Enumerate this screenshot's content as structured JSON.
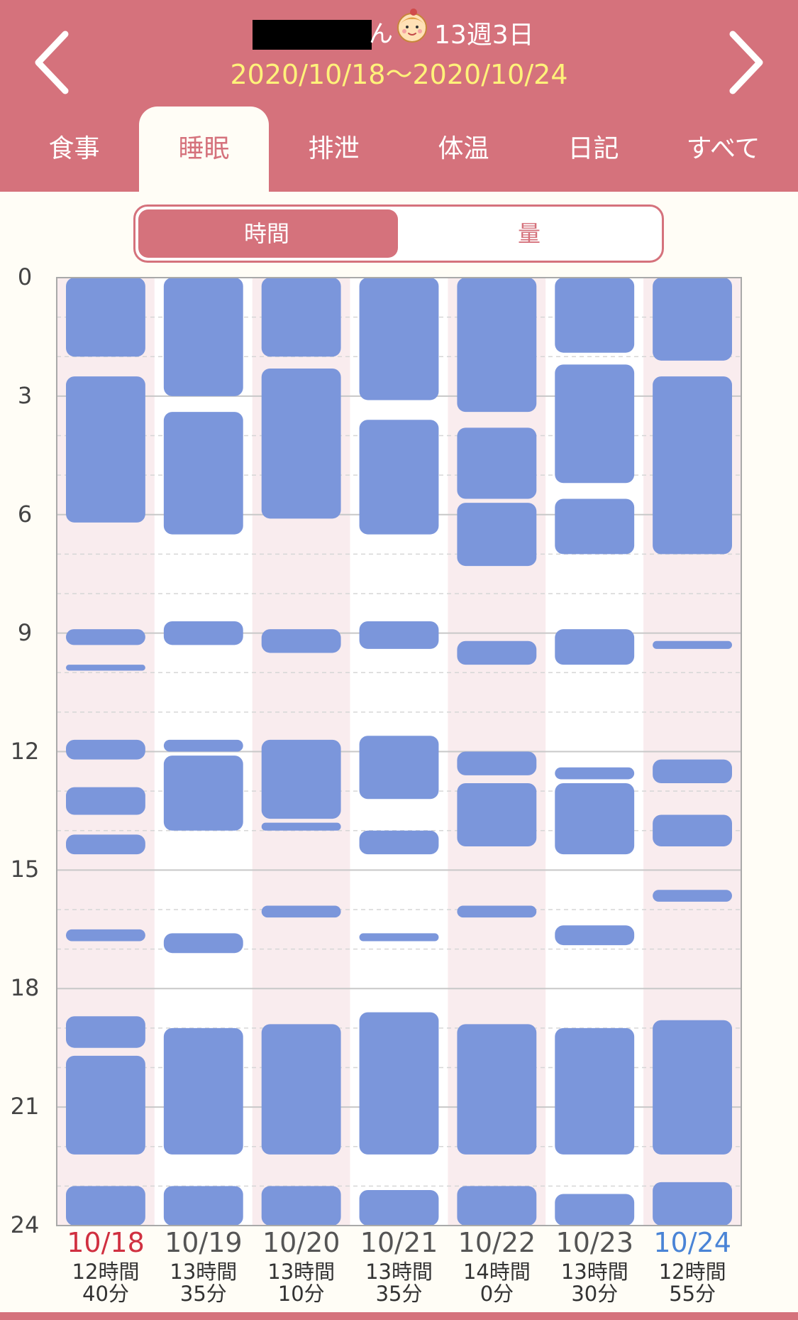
{
  "header": {
    "name_fragment": "ん",
    "week_label": "13週3日",
    "date_range": "2020/10/18〜2020/10/24",
    "icons": {
      "prev": "chevron-left-icon",
      "next": "chevron-right-icon",
      "baby": "baby-face-icon"
    }
  },
  "tabs": [
    {
      "label": "食事",
      "active": false
    },
    {
      "label": "睡眠",
      "active": true
    },
    {
      "label": "排泄",
      "active": false
    },
    {
      "label": "体温",
      "active": false
    },
    {
      "label": "日記",
      "active": false
    },
    {
      "label": "すべて",
      "active": false
    }
  ],
  "segment": {
    "option1": "時間",
    "option2": "量",
    "selected": "時間"
  },
  "colors": {
    "accent": "#d5727c",
    "sleep_bar": "#7b96db",
    "date_range": "#fff27a",
    "sunday": "#d03040",
    "saturday": "#4a84d6"
  },
  "chart_data": {
    "type": "bar",
    "y_axis": {
      "ticks": [
        "0",
        "3",
        "6",
        "9",
        "12",
        "15",
        "18",
        "21",
        "24"
      ],
      "range": [
        0,
        24
      ],
      "inverted": true
    },
    "grid": true,
    "days": [
      {
        "date": "10/18",
        "duration_hours": "12時間",
        "duration_min": "40分",
        "segments": [
          [
            0,
            2
          ],
          [
            2.5,
            6.2
          ],
          [
            8.9,
            9.3
          ],
          [
            9.8,
            9.95
          ],
          [
            11.7,
            12.2
          ],
          [
            12.9,
            13.6
          ],
          [
            14.1,
            14.6
          ],
          [
            16.5,
            16.8
          ],
          [
            18.7,
            19.5
          ],
          [
            19.7,
            22.2
          ],
          [
            23,
            24
          ]
        ]
      },
      {
        "date": "10/19",
        "duration_hours": "13時間",
        "duration_min": "35分",
        "segments": [
          [
            0,
            3
          ],
          [
            3.4,
            6.5
          ],
          [
            8.7,
            9.3
          ],
          [
            11.7,
            12
          ],
          [
            12.1,
            14
          ],
          [
            16.6,
            17.1
          ],
          [
            19,
            22.2
          ],
          [
            23,
            24
          ]
        ]
      },
      {
        "date": "10/20",
        "duration_hours": "13時間",
        "duration_min": "10分",
        "segments": [
          [
            0,
            2
          ],
          [
            2.3,
            6.1
          ],
          [
            8.9,
            9.5
          ],
          [
            11.7,
            13.7
          ],
          [
            13.8,
            14
          ],
          [
            15.9,
            16.2
          ],
          [
            18.9,
            22.2
          ],
          [
            23,
            24
          ]
        ]
      },
      {
        "date": "10/21",
        "duration_hours": "13時間",
        "duration_min": "35分",
        "segments": [
          [
            0,
            3.1
          ],
          [
            3.6,
            6.5
          ],
          [
            8.7,
            9.4
          ],
          [
            11.6,
            13.2
          ],
          [
            14,
            14.6
          ],
          [
            16.6,
            16.8
          ],
          [
            18.6,
            22.2
          ],
          [
            23.1,
            24
          ]
        ]
      },
      {
        "date": "10/22",
        "duration_hours": "14時間",
        "duration_min": "0分",
        "segments": [
          [
            0,
            3.4
          ],
          [
            3.8,
            5.6
          ],
          [
            5.7,
            7.3
          ],
          [
            9.2,
            9.8
          ],
          [
            12,
            12.6
          ],
          [
            12.8,
            14.4
          ],
          [
            15.9,
            16.2
          ],
          [
            18.9,
            22.2
          ],
          [
            23,
            24
          ]
        ]
      },
      {
        "date": "10/23",
        "duration_hours": "13時間",
        "duration_min": "30分",
        "segments": [
          [
            0,
            1.9
          ],
          [
            2.2,
            5.2
          ],
          [
            5.6,
            7
          ],
          [
            8.9,
            9.8
          ],
          [
            12.4,
            12.7
          ],
          [
            12.8,
            14.6
          ],
          [
            16.4,
            16.9
          ],
          [
            19,
            22.2
          ],
          [
            23.2,
            24
          ]
        ]
      },
      {
        "date": "10/24",
        "duration_hours": "12時間",
        "duration_min": "55分",
        "segments": [
          [
            0,
            2.1
          ],
          [
            2.5,
            7
          ],
          [
            9.2,
            9.4
          ],
          [
            12.2,
            12.8
          ],
          [
            13.6,
            14.4
          ],
          [
            15.5,
            15.8
          ],
          [
            18.8,
            22.2
          ],
          [
            22.9,
            24
          ]
        ]
      }
    ]
  }
}
